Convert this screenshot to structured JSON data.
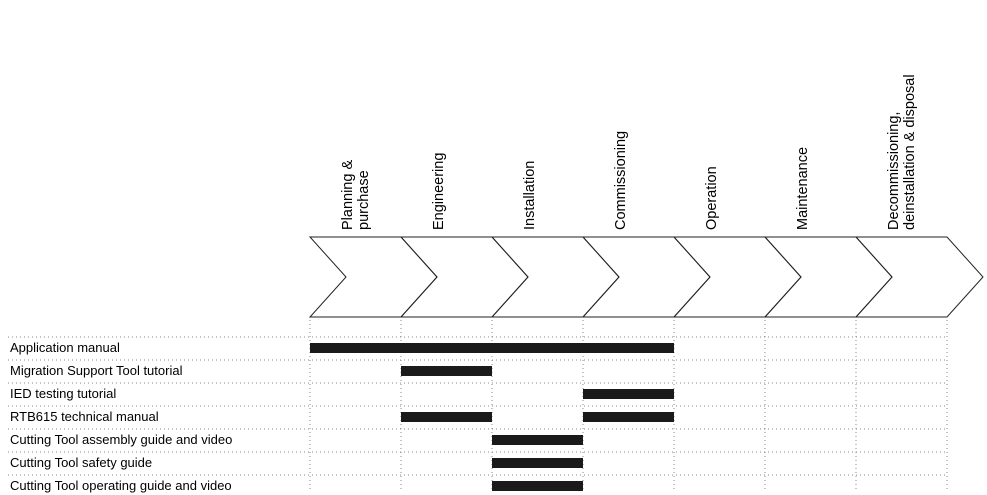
{
  "phases": [
    {
      "label": "Planning &\npurchase",
      "name": "planning-purchase"
    },
    {
      "label": "Engineering",
      "name": "engineering"
    },
    {
      "label": "Installation",
      "name": "installation"
    },
    {
      "label": "Commissioning",
      "name": "commissioning"
    },
    {
      "label": "Operation",
      "name": "operation"
    },
    {
      "label": "Maintenance",
      "name": "maintenance"
    },
    {
      "label": "Decommissioning,\ndeinstallation & disposal",
      "name": "decommissioning"
    }
  ],
  "documents": [
    {
      "label": "Application manual",
      "spans": [
        [
          0,
          4
        ]
      ]
    },
    {
      "label": "Migration Support Tool tutorial",
      "spans": [
        [
          1,
          2
        ]
      ]
    },
    {
      "label": "IED testing tutorial",
      "spans": [
        [
          3,
          4
        ]
      ]
    },
    {
      "label": "RTB615 technical manual",
      "spans": [
        [
          1,
          2
        ],
        [
          3,
          4
        ]
      ]
    },
    {
      "label": "Cutting Tool assembly guide and video",
      "spans": [
        [
          2,
          3
        ]
      ]
    },
    {
      "label": "Cutting Tool safety guide",
      "spans": [
        [
          2,
          3
        ]
      ]
    },
    {
      "label": "Cutting Tool operating guide and video",
      "spans": [
        [
          2,
          3
        ]
      ]
    }
  ]
}
